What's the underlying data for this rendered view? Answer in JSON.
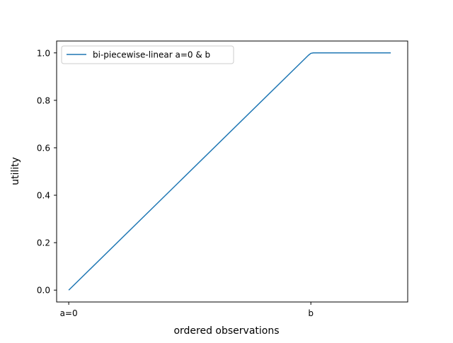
{
  "chart_data": {
    "type": "line",
    "xlabel": "ordered observations",
    "ylabel": "utility",
    "x_ticks": [
      {
        "label": "a=0",
        "value": 0
      },
      {
        "label": "b",
        "value": 1
      }
    ],
    "y_ticks": [
      "0.0",
      "0.2",
      "0.4",
      "0.6",
      "0.8",
      "1.0"
    ],
    "xlim": [
      -0.05,
      1.4
    ],
    "ylim": [
      -0.05,
      1.05
    ],
    "grid": false,
    "legend": {
      "position": "top-left"
    },
    "series": [
      {
        "name": "bi-piecewise-linear a=0 & b",
        "color": "#1f77b4",
        "x": [
          0,
          0.99,
          1.0,
          1.01,
          1.33
        ],
        "y": [
          0,
          0.99,
          0.998,
          1.0,
          1.0
        ]
      }
    ]
  }
}
